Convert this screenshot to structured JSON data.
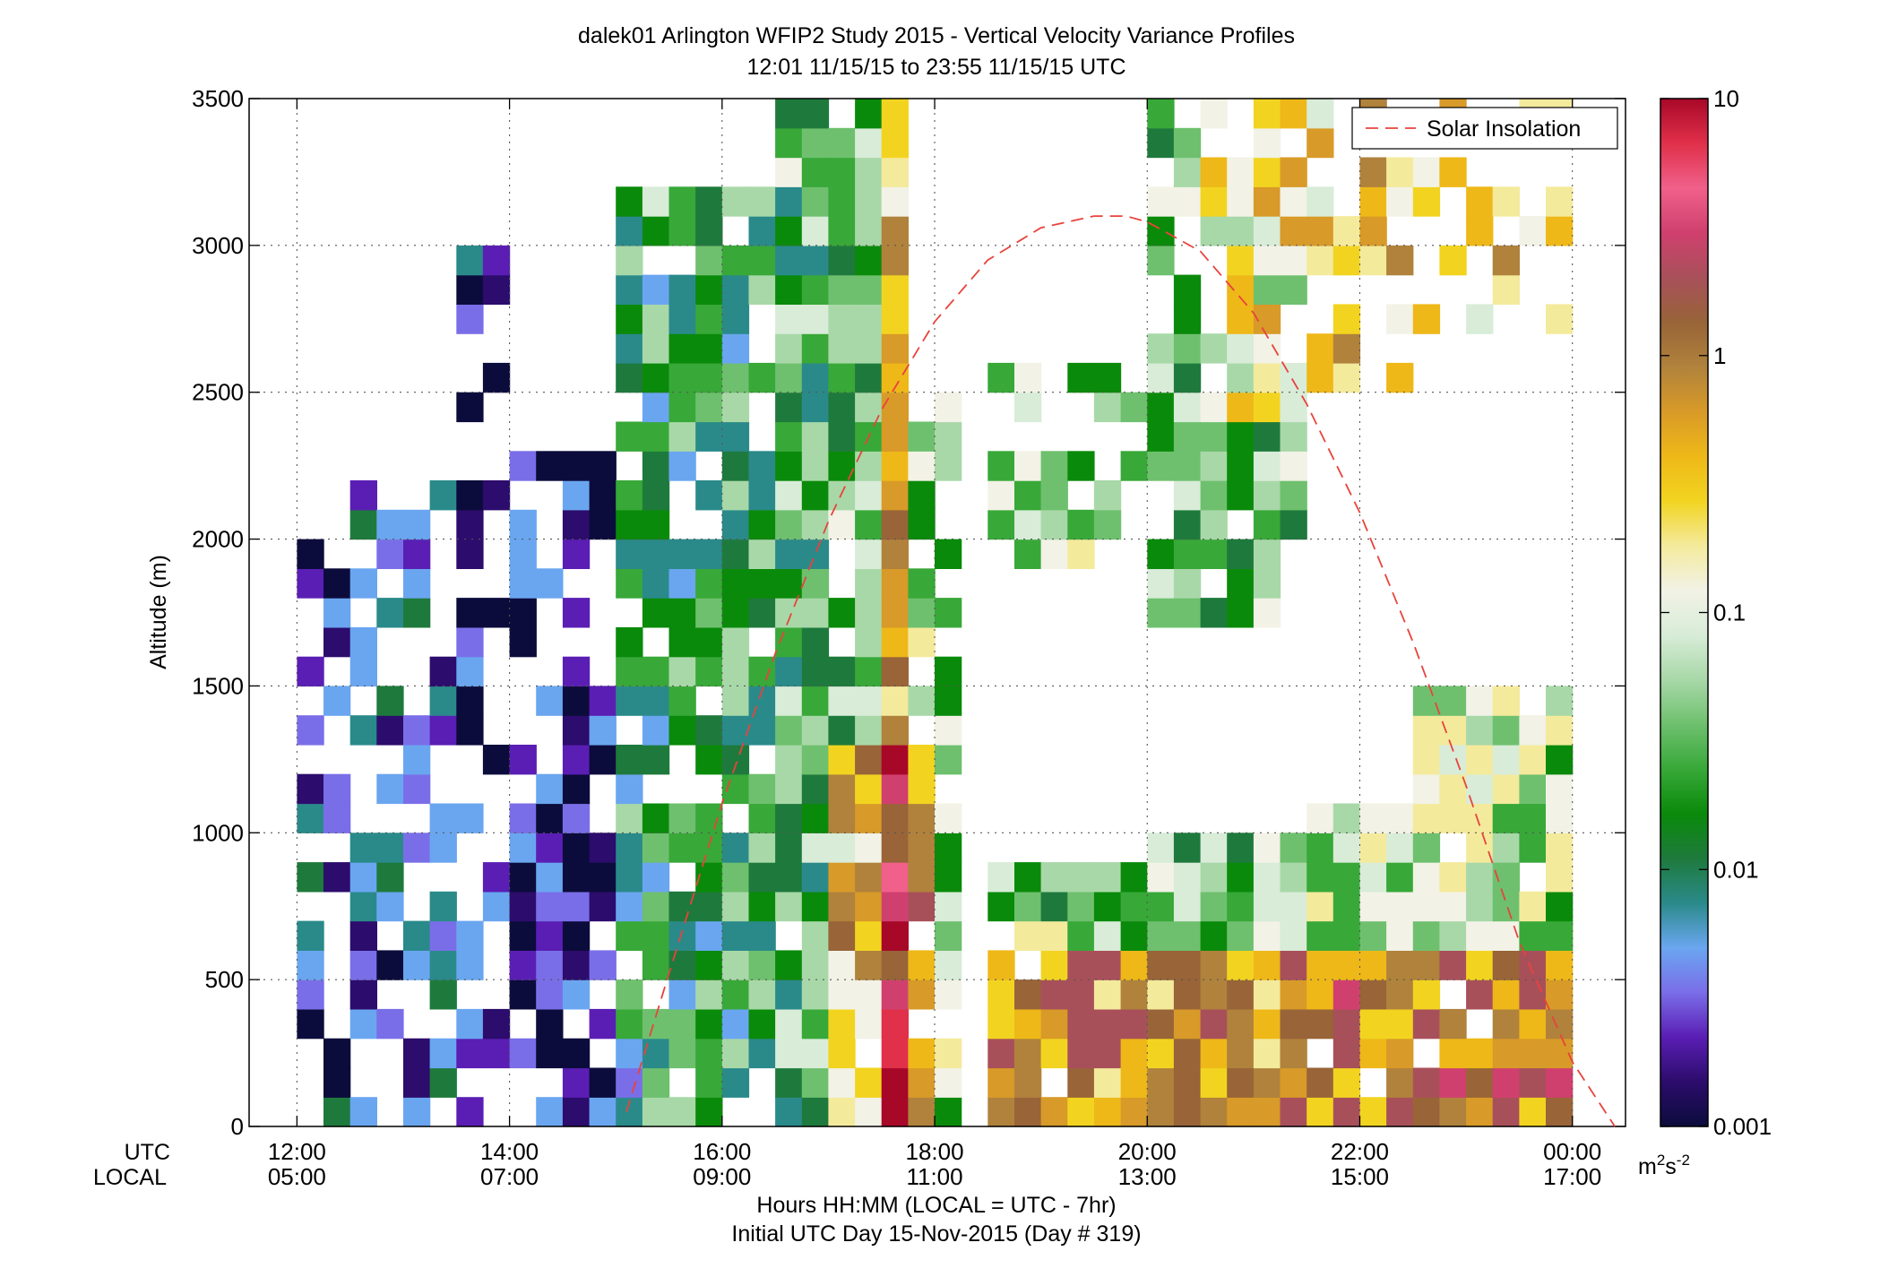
{
  "chart_data": {
    "type": "heatmap",
    "title": "dalek01 Arlington WFIP2 Study 2015 - Vertical Velocity Variance Profiles",
    "subtitle": "12:01 11/15/15 to 23:55 11/15/15  UTC",
    "ylabel": "Altitude (m)",
    "xlabel": "Hours HH:MM  (LOCAL = UTC - 7hr)",
    "xlabel2": "Initial UTC Day 15-Nov-2015 (Day # 319)",
    "row_label_utc": "UTC",
    "row_label_local": "LOCAL",
    "y_ticks": [
      "0",
      "500",
      "1000",
      "1500",
      "2000",
      "2500",
      "3000",
      "3500"
    ],
    "ylim": [
      0,
      3500
    ],
    "x_ticks_utc": [
      "12:00",
      "14:00",
      "16:00",
      "18:00",
      "20:00",
      "22:00",
      "00:00"
    ],
    "x_ticks_local": [
      "05:00",
      "07:00",
      "09:00",
      "11:00",
      "13:00",
      "15:00",
      "17:00"
    ],
    "x_tick_hours": [
      12,
      14,
      16,
      18,
      20,
      22,
      24
    ],
    "xlim_hours": [
      11.55,
      24.5
    ],
    "grid": true,
    "legend": {
      "entry": "Solar Insolation",
      "placement": "top-right",
      "style": "red dashed"
    },
    "series": [
      {
        "name": "Solar Insolation",
        "hours": [
          15.1,
          15.5,
          16.0,
          16.5,
          17.0,
          17.5,
          18.0,
          18.5,
          19.0,
          19.5,
          19.8,
          20.0,
          20.5,
          21.0,
          21.5,
          22.0,
          22.5,
          23.0,
          23.5,
          24.0,
          24.4
        ],
        "altitude_m": [
          50,
          520,
          1100,
          1610,
          2060,
          2440,
          2740,
          2950,
          3060,
          3100,
          3100,
          3080,
          2980,
          2770,
          2460,
          2090,
          1650,
          1160,
          630,
          220,
          0
        ]
      }
    ],
    "colorbar": {
      "scale": "log",
      "range": [
        0.001,
        10
      ],
      "ticks": [
        "0.001",
        "0.01",
        "0.1",
        "1",
        "10"
      ],
      "unit_main": "m",
      "unit_sup1": "2",
      "unit_mid": "s",
      "unit_sup2": "-2",
      "colors": [
        "#0c0c3c",
        "#2c0c6c",
        "#5a1eb4",
        "#7a6ee8",
        "#6aa6f0",
        "#2a8a8a",
        "#1e7a3c",
        "#0a8a0a",
        "#38a838",
        "#6ec06e",
        "#a8d8a8",
        "#d8ecd8",
        "#f2f2e6",
        "#f4ea9c",
        "#f2d420",
        "#eeb818",
        "#d89a28",
        "#b0823c",
        "#986438",
        "#a8505a",
        "#d0406e",
        "#f0608a",
        "#e0304a",
        "#a80828"
      ]
    },
    "cells": "lidar variance samples: ~15-min columns x ~100 m gates; low variance (blue-purple) 12:00-15:00 below 1500 m, green 15:00-17:30 up to 3500 m, yellow/orange near surface 19:00-23:45, data gap 18:15-18:45"
  },
  "colors": {
    "solar_line": "#e8433c",
    "axis": "#000000",
    "grid": "#555555"
  }
}
